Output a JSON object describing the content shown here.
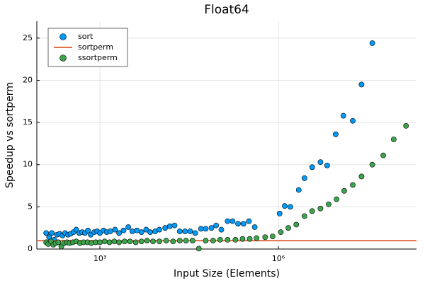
{
  "chart_data": {
    "type": "scatter",
    "title": "Float64",
    "x_label": "Input Size (Elements)",
    "y_label": "Speedup vs sortperm",
    "x_scale": "log",
    "xlim": [
      87,
      210000000
    ],
    "ylim": [
      0,
      27
    ],
    "xticks": [
      {
        "value": 1000,
        "label": "10³"
      },
      {
        "value": 1000000,
        "label": "10⁶"
      }
    ],
    "yticks": [
      0,
      5,
      10,
      15,
      20,
      25
    ],
    "grid": true,
    "legend_position": "upper-left",
    "series": [
      {
        "name": "sort",
        "color": "#009af9",
        "x": [
          125,
          140,
          155,
          170,
          190,
          210,
          235,
          260,
          290,
          320,
          360,
          400,
          450,
          500,
          560,
          630,
          700,
          800,
          900,
          1000,
          1150,
          1300,
          1500,
          1800,
          2100,
          2500,
          3000,
          3500,
          4200,
          5000,
          6000,
          7000,
          8500,
          10000,
          12500,
          15000,
          18000,
          22000,
          27000,
          33000,
          40000,
          50000,
          60000,
          75000,
          90000,
          110000,
          140000,
          170000,
          210000,
          260000,
          320000,
          400000,
          1050000,
          1280000,
          1590000,
          2200000,
          2750000,
          3700000,
          5100000,
          6600000,
          9200000,
          12400000,
          17800000,
          25000000,
          38000000
        ],
        "values": [
          1.9,
          1.4,
          1.9,
          1.1,
          1.7,
          1.8,
          1.6,
          1.9,
          1.7,
          1.8,
          2.0,
          2.3,
          1.9,
          2.0,
          1.9,
          2.2,
          1.7,
          2.0,
          2.1,
          1.9,
          2.2,
          2.0,
          2.1,
          2.3,
          1.9,
          2.2,
          2.6,
          2.1,
          2.2,
          2.0,
          2.3,
          2.0,
          2.1,
          2.3,
          2.5,
          2.7,
          2.8,
          2.1,
          2.1,
          2.1,
          1.9,
          2.4,
          2.4,
          2.5,
          2.8,
          2.3,
          3.3,
          3.3,
          3.0,
          3.0,
          3.3,
          2.6,
          4.2,
          5.1,
          5.0,
          7.0,
          8.4,
          9.7,
          10.3,
          9.9,
          13.6,
          15.8,
          15.2,
          19.5,
          24.4
        ]
      },
      {
        "name": "sortperm",
        "color": "#e26f46",
        "line_value": 1
      },
      {
        "name": "ssortperm",
        "color": "#3da44d",
        "x": [
          125,
          135,
          150,
          165,
          180,
          200,
          225,
          250,
          280,
          310,
          350,
          400,
          460,
          530,
          620,
          720,
          850,
          1000,
          1200,
          1450,
          1750,
          2100,
          2600,
          3200,
          4000,
          5000,
          6200,
          7800,
          10000,
          13000,
          17000,
          22000,
          28000,
          36000,
          46000,
          60000,
          80000,
          105000,
          140000,
          190000,
          250000,
          330000,
          430000,
          600000,
          800000,
          1100000,
          1470000,
          2000000,
          2750000,
          3700000,
          5100000,
          7000000,
          9500000,
          12800000,
          17800000,
          25000000,
          38000000,
          58000000,
          87000000,
          140000000
        ],
        "values": [
          0.8,
          0.6,
          0.9,
          0.5,
          0.7,
          0.8,
          0.3,
          0.7,
          0.8,
          0.7,
          0.8,
          0.9,
          0.7,
          0.8,
          0.8,
          0.7,
          0.8,
          0.8,
          0.9,
          0.8,
          0.9,
          0.8,
          0.9,
          0.9,
          0.8,
          0.9,
          1.0,
          0.9,
          0.9,
          1.0,
          0.9,
          1.0,
          1.0,
          1.0,
          0.05,
          1.0,
          1.0,
          1.1,
          1.1,
          1.1,
          1.2,
          1.2,
          1.3,
          1.4,
          1.5,
          2.0,
          2.5,
          2.9,
          3.9,
          4.5,
          4.8,
          5.3,
          5.9,
          6.9,
          7.6,
          8.6,
          10.0,
          11.1,
          13.0,
          14.6
        ]
      }
    ]
  }
}
